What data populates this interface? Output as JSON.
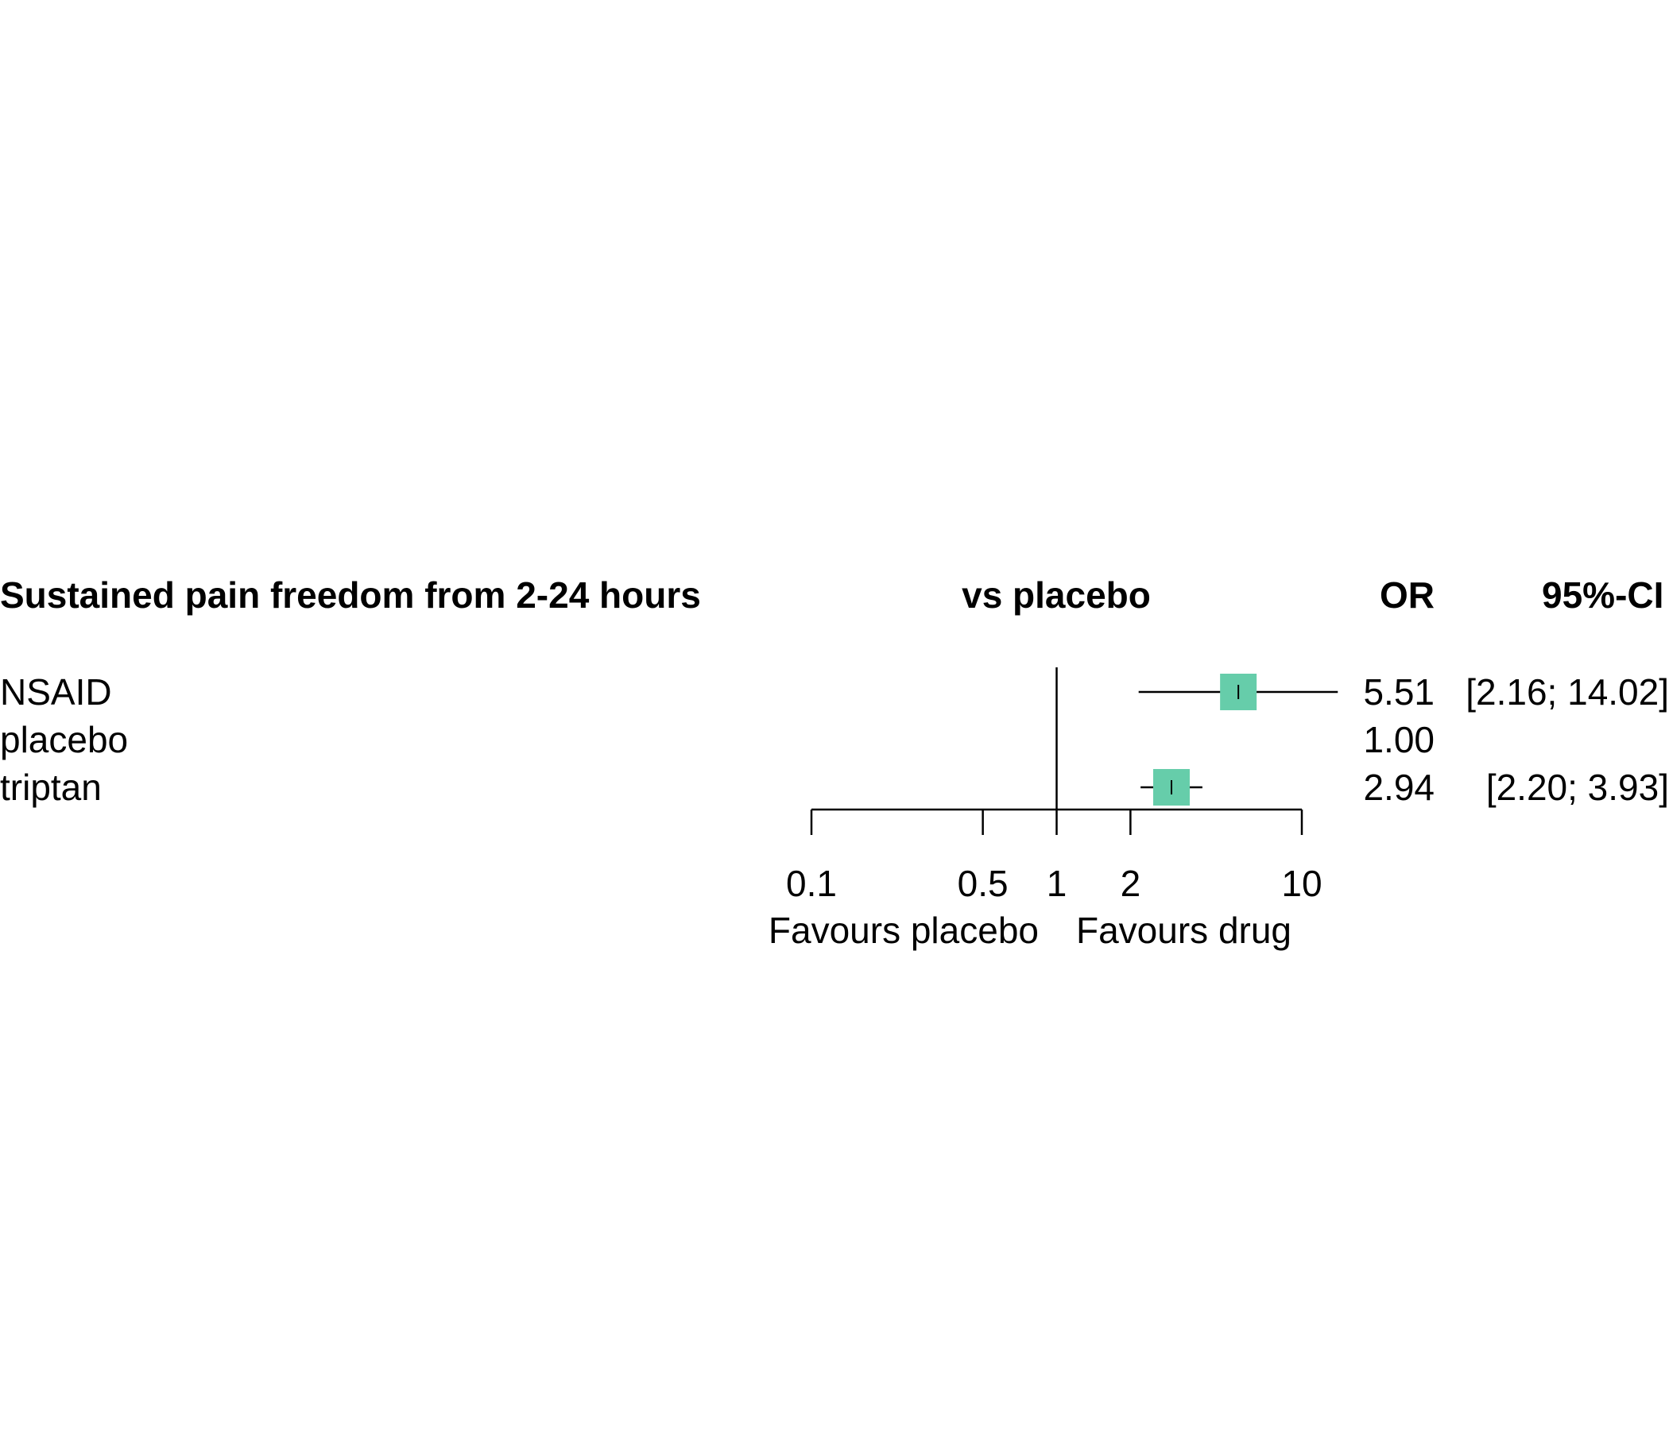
{
  "chart_data": {
    "type": "forest",
    "headers": {
      "comparison": "Sustained pain freedom from 2-24 hours",
      "plot": "vs placebo",
      "estimate": "OR",
      "ci": "95%-CI"
    },
    "rows": [
      {
        "label": "NSAID",
        "or": 5.51,
        "lower": 2.16,
        "upper": 14.02,
        "or_text": "5.51",
        "ci_text": "[2.16; 14.02]"
      },
      {
        "label": "placebo",
        "or": 1.0,
        "lower": null,
        "upper": null,
        "or_text": "1.00",
        "ci_text": ""
      },
      {
        "label": "triptan",
        "or": 2.94,
        "lower": 2.2,
        "upper": 3.93,
        "or_text": "2.94",
        "ci_text": "[2.20;  3.93]"
      }
    ],
    "x_axis": {
      "scale": "log",
      "ticks": [
        0.1,
        0.5,
        1,
        2,
        10
      ],
      "tick_labels": [
        "0.1",
        "0.5",
        "1",
        "2",
        "10"
      ],
      "range": [
        0.1,
        10
      ],
      "reference_line": 1
    },
    "favours": {
      "left": "Favours placebo",
      "right": "Favours drug"
    },
    "marker_color": "#66CDAA"
  }
}
